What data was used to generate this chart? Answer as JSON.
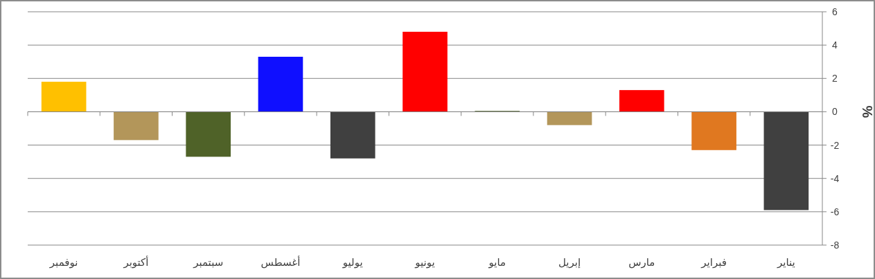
{
  "chart_data": {
    "type": "bar",
    "ylabel": "%",
    "categories": [
      "نوفمبر",
      "أكتوبر",
      "سبتمبر",
      "أغسطس",
      "يوليو",
      "يونيو",
      "مايو",
      "إبريل",
      "مارس",
      "فبراير",
      "يناير"
    ],
    "values": [
      1.8,
      -1.7,
      -2.7,
      3.3,
      -2.8,
      4.8,
      0.05,
      -0.8,
      1.3,
      -2.3,
      -5.9
    ],
    "colors": [
      "#ffc000",
      "#b3965a",
      "#4f6228",
      "#0f0fff",
      "#404040",
      "#ff0000",
      "#4f6228",
      "#b3965a",
      "#ff0000",
      "#e07820",
      "#404040"
    ],
    "ylim": [
      -8,
      6
    ],
    "yticks": [
      -8,
      -6,
      -4,
      -2,
      0,
      2,
      4,
      6
    ],
    "grid": "y"
  }
}
